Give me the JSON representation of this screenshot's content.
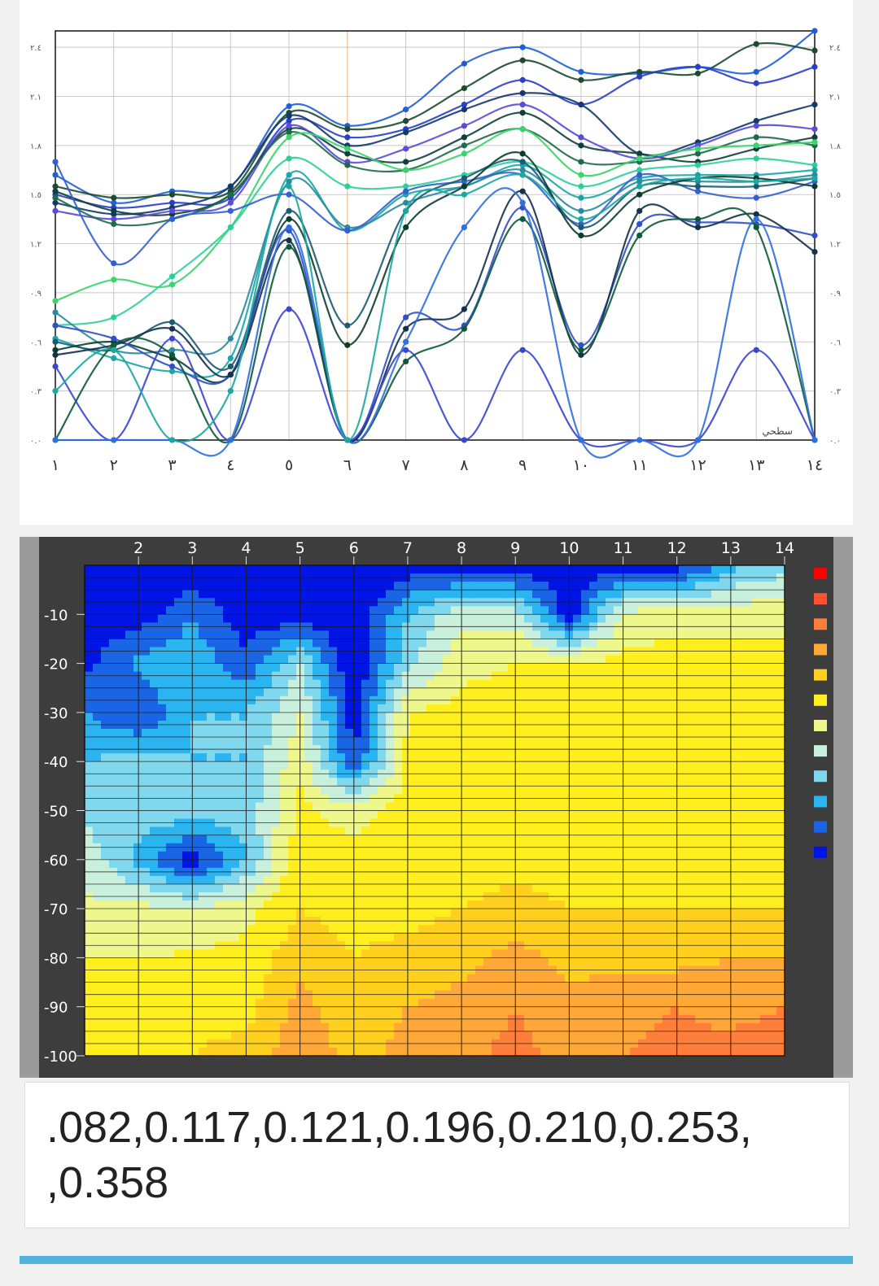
{
  "chart_data": [
    {
      "type": "line",
      "title": "",
      "xlabel": "",
      "ylabel": "",
      "corner_label": "سطحي",
      "x_tick_labels": [
        "١",
        "٢",
        "٣",
        "٤",
        "٥",
        "٦",
        "٧",
        "٨",
        "٩",
        "١٠",
        "١١",
        "١٢",
        "١٣",
        "١٤"
      ],
      "y_tick_labels": [
        "٢.٤",
        "٢.١",
        "١.٨",
        "١.٥",
        "١.٢",
        "٠.٩",
        "٠.٦",
        "٠.٣",
        "٠.٠"
      ],
      "y_tick_values": [
        2.4,
        2.1,
        1.8,
        1.5,
        1.2,
        0.9,
        0.6,
        0.3,
        0.0
      ],
      "xlim": [
        1,
        14
      ],
      "ylim": [
        0.0,
        2.5
      ],
      "grid": true,
      "series": [
        {
          "color": "#1f5fd6",
          "values": [
            1.62,
            1.45,
            1.52,
            1.55,
            2.04,
            1.92,
            2.02,
            2.3,
            2.4,
            2.25,
            2.24,
            2.28,
            2.25,
            2.5
          ]
        },
        {
          "color": "#1e4a2f",
          "values": [
            1.55,
            1.48,
            1.5,
            1.52,
            2.0,
            1.9,
            1.95,
            2.15,
            2.32,
            2.2,
            2.25,
            2.24,
            2.42,
            2.38
          ]
        },
        {
          "color": "#2a3fc8",
          "values": [
            1.5,
            1.42,
            1.45,
            1.48,
            1.95,
            1.85,
            1.9,
            2.05,
            2.2,
            2.05,
            2.22,
            2.28,
            2.18,
            2.28
          ]
        },
        {
          "color": "#123a6a",
          "values": [
            1.45,
            1.38,
            1.42,
            1.55,
            1.98,
            1.8,
            1.88,
            2.02,
            2.12,
            2.05,
            1.75,
            1.82,
            1.95,
            2.05
          ]
        },
        {
          "color": "#0f3f3a",
          "values": [
            1.52,
            1.4,
            1.38,
            1.5,
            1.9,
            1.75,
            1.7,
            1.85,
            2.0,
            1.8,
            1.75,
            1.7,
            1.78,
            1.85
          ]
        },
        {
          "color": "#5a4bd8",
          "values": [
            1.4,
            1.35,
            1.4,
            1.45,
            1.92,
            1.7,
            1.78,
            1.92,
            2.05,
            1.85,
            1.72,
            1.8,
            1.92,
            1.9
          ]
        },
        {
          "color": "#1d6b48",
          "values": [
            1.48,
            1.32,
            1.35,
            1.5,
            1.88,
            1.68,
            1.65,
            1.8,
            1.9,
            1.7,
            1.7,
            1.75,
            1.85,
            1.8
          ]
        },
        {
          "color": "#3ad46a",
          "values": [
            0.85,
            0.98,
            0.95,
            1.3,
            1.85,
            1.78,
            1.65,
            1.75,
            1.9,
            1.62,
            1.72,
            1.78,
            1.8,
            1.82
          ]
        },
        {
          "color": "#2ccf9a",
          "values": [
            0.7,
            0.75,
            1.0,
            1.3,
            1.72,
            1.55,
            1.55,
            1.62,
            1.7,
            1.55,
            1.65,
            1.68,
            1.72,
            1.68
          ]
        },
        {
          "color": "#19a6a8",
          "values": [
            0.62,
            0.5,
            0.42,
            0.5,
            1.62,
            1.28,
            1.5,
            1.55,
            1.68,
            1.48,
            1.6,
            1.62,
            1.62,
            1.65
          ]
        },
        {
          "color": "#2a8aa0",
          "values": [
            0.78,
            0.55,
            0.55,
            0.62,
            1.58,
            1.3,
            1.45,
            1.55,
            1.65,
            1.4,
            1.58,
            1.58,
            1.58,
            1.62
          ]
        },
        {
          "color": "#3360d0",
          "values": [
            1.7,
            1.08,
            1.35,
            1.4,
            1.5,
            1.28,
            1.52,
            1.58,
            1.62,
            1.32,
            1.62,
            1.52,
            1.48,
            1.58
          ]
        },
        {
          "color": "#1a5a72",
          "values": [
            0.6,
            0.55,
            0.72,
            0.45,
            1.4,
            0.7,
            1.4,
            1.6,
            1.7,
            1.3,
            1.55,
            1.55,
            1.55,
            1.6
          ]
        },
        {
          "color": "#0b3d2e",
          "values": [
            0.55,
            0.6,
            0.5,
            0.4,
            1.35,
            0.58,
            1.3,
            1.55,
            1.75,
            1.25,
            1.5,
            1.6,
            1.6,
            1.55
          ]
        },
        {
          "color": "#3050c8",
          "values": [
            0.7,
            0.62,
            0.45,
            0.4,
            1.28,
            0.0,
            0.75,
            0.7,
            1.42,
            0.58,
            1.32,
            1.33,
            1.32,
            1.25
          ]
        },
        {
          "color": "#14324a",
          "values": [
            0.52,
            0.58,
            0.68,
            0.4,
            1.22,
            0.0,
            0.68,
            0.8,
            1.52,
            0.52,
            1.4,
            1.3,
            1.38,
            1.15
          ]
        },
        {
          "color": "#3a45d0",
          "values": [
            0.45,
            0.0,
            0.62,
            0.0,
            0.8,
            0.0,
            0.55,
            0.0,
            0.55,
            0.0,
            0.0,
            0.0,
            0.55,
            0.0
          ]
        },
        {
          "color": "#0d5a3a",
          "values": [
            0.0,
            0.58,
            0.52,
            0.0,
            1.18,
            0.0,
            0.48,
            0.68,
            1.35,
            0.55,
            1.25,
            1.35,
            1.3,
            0.0
          ]
        },
        {
          "color": "#2f6fe0",
          "values": [
            0.0,
            0.0,
            0.0,
            0.0,
            1.3,
            0.0,
            0.6,
            1.3,
            1.45,
            0.0,
            0.0,
            0.0,
            1.35,
            0.0
          ]
        },
        {
          "color": "#1aa9a0",
          "values": [
            0.3,
            0.55,
            0.0,
            0.3,
            1.55,
            0.0,
            1.4,
            1.5,
            1.62,
            1.35,
            1.55,
            1.6,
            1.58,
            1.6
          ]
        }
      ]
    },
    {
      "type": "heatmap",
      "title": "",
      "xlabel": "",
      "ylabel": "",
      "x_tick_labels": [
        "2",
        "3",
        "4",
        "5",
        "6",
        "7",
        "8",
        "9",
        "10",
        "11",
        "12",
        "13",
        "14"
      ],
      "x_tick_values": [
        2,
        3,
        4,
        5,
        6,
        7,
        8,
        9,
        10,
        11,
        12,
        13,
        14
      ],
      "y_tick_labels": [
        "-10",
        "-20",
        "-30",
        "-40",
        "-50",
        "-60",
        "-70",
        "-80",
        "-90",
        "-100"
      ],
      "y_tick_values": [
        -10,
        -20,
        -30,
        -40,
        -50,
        -60,
        -70,
        -80,
        -90,
        -100
      ],
      "xlim": [
        1,
        14
      ],
      "ylim": [
        -100,
        0
      ],
      "grid": true,
      "colorscale": [
        {
          "level": 0.0,
          "color": "#0014e6"
        },
        {
          "level": 0.15,
          "color": "#1a64e6"
        },
        {
          "level": 0.3,
          "color": "#2ab4f0"
        },
        {
          "level": 0.45,
          "color": "#7fd8ee"
        },
        {
          "level": 0.6,
          "color": "#c8f0dc"
        },
        {
          "level": 0.75,
          "color": "#eef78c"
        },
        {
          "level": 0.9,
          "color": "#ffef1e"
        },
        {
          "level": 1.05,
          "color": "#ffd01e"
        },
        {
          "level": 1.2,
          "color": "#ffa838"
        },
        {
          "level": 1.35,
          "color": "#ff7e3a"
        },
        {
          "level": 1.5,
          "color": "#ff5030"
        },
        {
          "level": 1.8,
          "color": "#ff0000"
        }
      ],
      "depths": [
        0,
        -10,
        -20,
        -30,
        -40,
        -50,
        -60,
        -70,
        -80,
        -90,
        -100
      ],
      "columns": [
        1,
        2,
        3,
        4,
        5,
        6,
        7,
        8,
        9,
        10,
        11,
        12,
        13,
        14
      ],
      "grid_values": [
        [
          0.0,
          0.0,
          0.0,
          0.0,
          0.0,
          0.0,
          0.05,
          0.05,
          0.05,
          0.05,
          0.05,
          0.05,
          0.4,
          0.55
        ],
        [
          0.05,
          0.05,
          0.3,
          0.05,
          0.05,
          0.0,
          0.45,
          0.7,
          0.7,
          0.05,
          0.8,
          0.85,
          0.85,
          0.85
        ],
        [
          0.1,
          0.35,
          0.4,
          0.2,
          0.6,
          0.0,
          0.55,
          0.85,
          0.9,
          0.9,
          0.95,
          0.95,
          0.95,
          0.95
        ],
        [
          0.3,
          0.15,
          0.45,
          0.45,
          0.75,
          0.05,
          0.9,
          0.95,
          1.0,
          0.95,
          1.0,
          1.0,
          1.0,
          1.0
        ],
        [
          0.45,
          0.5,
          0.45,
          0.45,
          0.85,
          0.15,
          0.95,
          1.0,
          1.0,
          1.0,
          1.0,
          1.0,
          1.0,
          1.0
        ],
        [
          0.55,
          0.55,
          0.55,
          0.5,
          0.95,
          0.8,
          1.0,
          1.0,
          1.0,
          1.0,
          1.0,
          1.0,
          1.0,
          1.0
        ],
        [
          0.7,
          0.4,
          0.05,
          0.45,
          1.0,
          1.0,
          1.0,
          1.0,
          1.0,
          1.0,
          1.0,
          1.0,
          1.0,
          1.0
        ],
        [
          0.78,
          0.8,
          0.75,
          0.85,
          1.05,
          1.0,
          1.0,
          1.05,
          1.1,
          1.05,
          1.05,
          1.05,
          1.05,
          1.05
        ],
        [
          0.9,
          0.9,
          0.92,
          0.95,
          1.15,
          1.05,
          1.1,
          1.15,
          1.25,
          1.15,
          1.15,
          1.15,
          1.2,
          1.2
        ],
        [
          1.0,
          1.0,
          1.0,
          1.0,
          1.25,
          1.1,
          1.2,
          1.25,
          1.35,
          1.25,
          1.3,
          1.35,
          1.3,
          1.35
        ],
        [
          1.05,
          1.05,
          1.05,
          1.1,
          1.3,
          1.15,
          1.25,
          1.3,
          1.4,
          1.3,
          1.35,
          1.4,
          1.4,
          1.45
        ]
      ]
    }
  ],
  "values_text": {
    "line1": ".082,0.117,0.121,0.196,0.210,0.253,",
    "line2": ",0.358"
  },
  "colors": {
    "accent_bar": "#4fb3dc",
    "contour_frame": "#3d3d3d",
    "contour_side": "#9b9b9b"
  }
}
